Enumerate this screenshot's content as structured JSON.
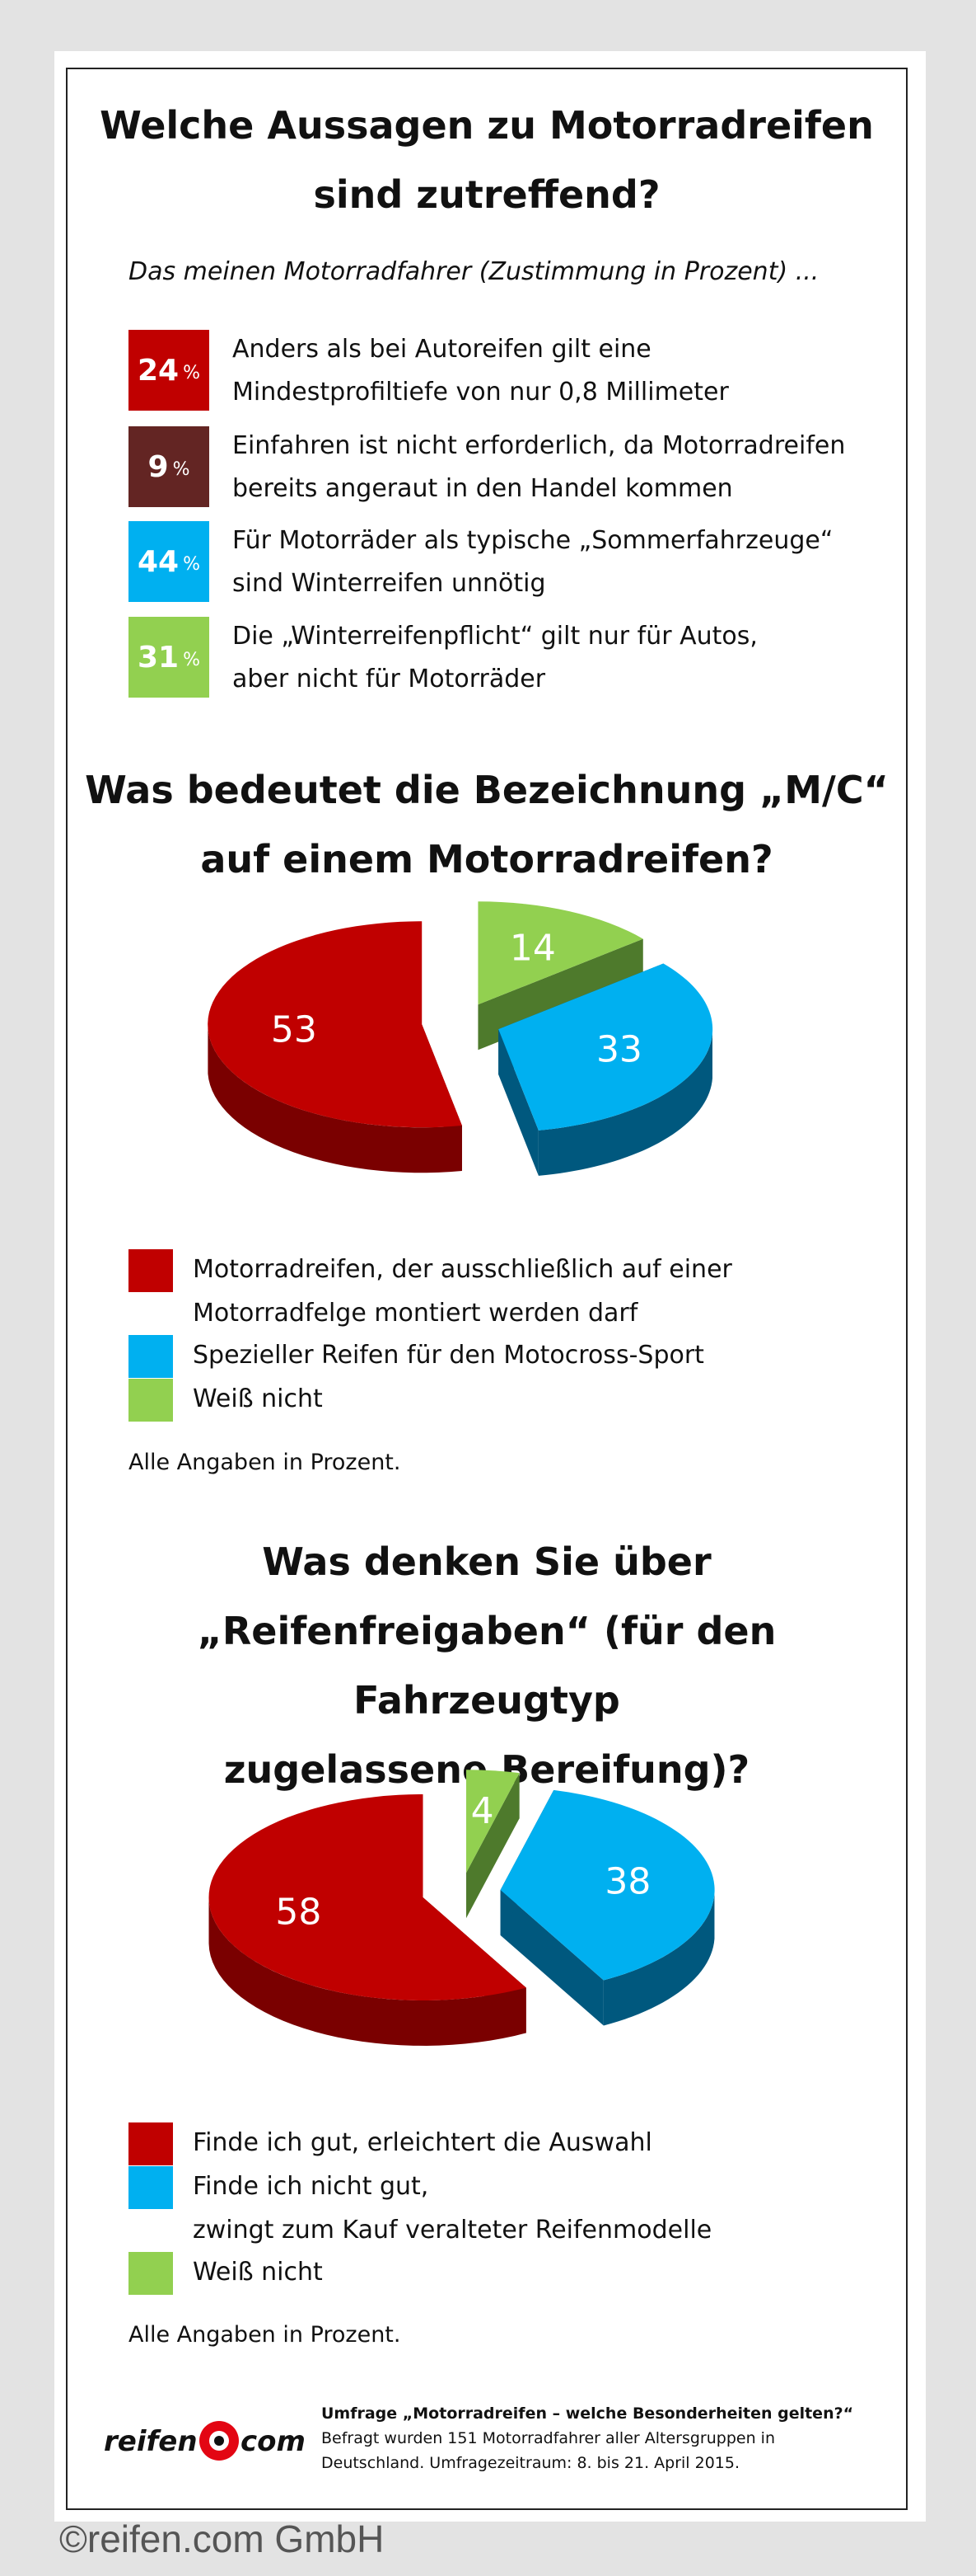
{
  "section1": {
    "title_line1": "Welche Aussagen zu Motorradreifen",
    "title_line2": "sind zutreffend?",
    "intro": "Das meinen Motorradfahrer (Zustimmung in Prozent) ...",
    "stats": [
      {
        "value": "24",
        "unit": "%",
        "color": "#c00000",
        "line1": "Anders als bei Autoreifen gilt eine",
        "line2": "Mindestprofiltiefe von nur 0,8 Millimeter"
      },
      {
        "value": "9",
        "unit": "%",
        "color": "#632523",
        "line1": "Einfahren ist nicht erforderlich, da Motorradreifen",
        "line2": "bereits angeraut in den Handel kommen"
      },
      {
        "value": "44",
        "unit": "%",
        "color": "#00b0f0",
        "line1": "Für Motorräder als typische „Sommerfahrzeuge“",
        "line2": "sind Winterreifen unnötig"
      },
      {
        "value": "31",
        "unit": "%",
        "color": "#92d050",
        "line1": "Die „Winterreifenpflicht“ gilt nur für Autos,",
        "line2": "aber nicht für Motorräder"
      }
    ]
  },
  "section2": {
    "title_line1": "Was bedeutet die Bezeichnung „M/C“",
    "title_line2": "auf einem Motorradreifen?",
    "legend": [
      {
        "color": "#c00000",
        "line1": "Motorradreifen, der ausschließlich auf einer",
        "line2": "Motorradfelge montiert werden darf"
      },
      {
        "color": "#00b0f0",
        "line1": "Spezieller Reifen für den Motocross-Sport",
        "line2": ""
      },
      {
        "color": "#92d050",
        "line1": "Weiß nicht",
        "line2": ""
      }
    ],
    "note": "Alle Angaben in Prozent."
  },
  "section3": {
    "title_line1": "Was denken Sie über",
    "title_line2": "„Reifenfreigaben“ (für den Fahrzeugtyp",
    "title_line3": "zugelassene Bereifung)?",
    "legend": [
      {
        "color": "#c00000",
        "line1": "Finde ich gut, erleichtert die Auswahl",
        "line2": ""
      },
      {
        "color": "#00b0f0",
        "line1": "Finde ich nicht gut,",
        "line2": "zwingt zum Kauf veralteter Reifenmodelle"
      },
      {
        "color": "#92d050",
        "line1": "Weiß nicht",
        "line2": ""
      }
    ],
    "note": "Alle Angaben in Prozent."
  },
  "chart_data": [
    {
      "type": "pie",
      "title": "Was bedeutet die Bezeichnung „M/C“ auf einem Motorradreifen?",
      "categories": [
        "Motorradreifen, der ausschließlich auf einer Motorradfelge montiert werden darf",
        "Spezieller Reifen für den Motocross-Sport",
        "Weiß nicht"
      ],
      "values": [
        53,
        33,
        14
      ],
      "colors": [
        "#c00000",
        "#00b0f0",
        "#92d050"
      ],
      "side_colors": [
        "#7a0000",
        "#00587e",
        "#4e7a2c"
      ]
    },
    {
      "type": "pie",
      "title": "Was denken Sie über „Reifenfreigaben“ (für den Fahrzeugtyp zugelassene Bereifung)?",
      "categories": [
        "Finde ich gut, erleichtert die Auswahl",
        "Finde ich nicht gut, zwingt zum Kauf veralteter Reifenmodelle",
        "Weiß nicht"
      ],
      "values": [
        58,
        38,
        4
      ],
      "colors": [
        "#c00000",
        "#00b0f0",
        "#92d050"
      ],
      "side_colors": [
        "#7a0000",
        "#00587e",
        "#4e7a2c"
      ]
    }
  ],
  "footer": {
    "logo_left": "reifen",
    "logo_right": "com",
    "survey_title": "Umfrage „Motorradreifen – welche Besonderheiten gelten?“",
    "survey_line1": "Befragt wurden 151 Motorradfahrer aller Altersgruppen in",
    "survey_line2": "Deutschland. Umfragezeitraum: 8. bis 21. April 2015.",
    "copyright": "©reifen.com GmbH"
  }
}
